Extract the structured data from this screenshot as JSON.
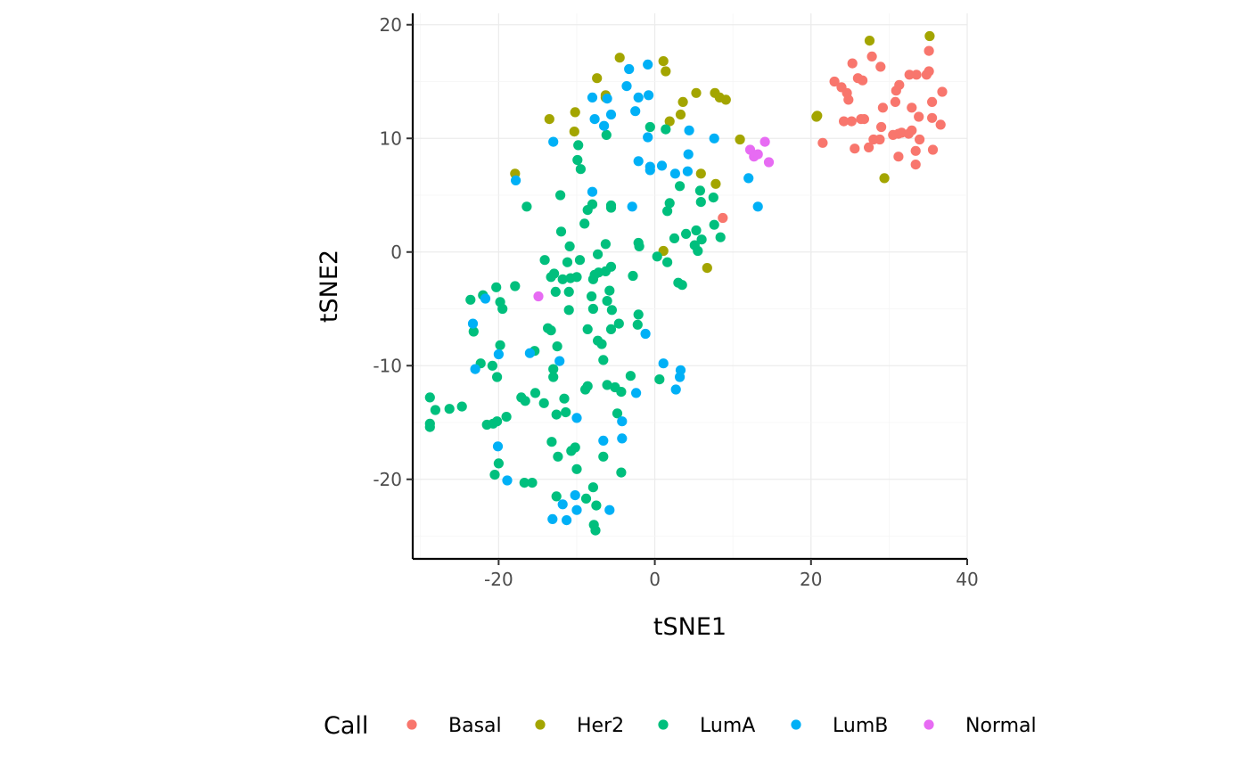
{
  "chart_data": {
    "type": "scatter",
    "xlabel": "tSNE1",
    "ylabel": "tSNE2",
    "xlim": [
      -31,
      40
    ],
    "ylim": [
      -27,
      21
    ],
    "x_ticks": [
      -20,
      0,
      20,
      40
    ],
    "y_ticks": [
      -20,
      -10,
      0,
      10,
      20
    ],
    "x_tick_labels": [
      "-20",
      "0",
      "20",
      "40"
    ],
    "y_tick_labels": [
      "-20",
      "-10",
      "0",
      "10",
      "20"
    ],
    "grid": true,
    "legend": {
      "title": "Call",
      "position": "bottom"
    },
    "series": [
      {
        "name": "Basal",
        "color": "#F8766D",
        "points": [
          [
            23.0,
            15.0
          ],
          [
            23.9,
            14.5
          ],
          [
            24.6,
            14.0
          ],
          [
            25.3,
            16.6
          ],
          [
            26.0,
            15.3
          ],
          [
            26.6,
            15.1
          ],
          [
            27.8,
            17.2
          ],
          [
            28.9,
            16.3
          ],
          [
            31.3,
            14.7
          ],
          [
            32.6,
            15.6
          ],
          [
            33.5,
            15.6
          ],
          [
            35.1,
            17.7
          ],
          [
            34.8,
            15.6
          ],
          [
            35.1,
            15.9
          ],
          [
            36.8,
            14.1
          ],
          [
            24.8,
            13.4
          ],
          [
            30.9,
            14.2
          ],
          [
            29.2,
            12.7
          ],
          [
            30.8,
            13.2
          ],
          [
            32.9,
            12.7
          ],
          [
            35.5,
            13.2
          ],
          [
            24.2,
            11.5
          ],
          [
            25.2,
            11.5
          ],
          [
            26.4,
            11.7
          ],
          [
            26.8,
            11.7
          ],
          [
            29.0,
            11.0
          ],
          [
            33.8,
            11.9
          ],
          [
            35.5,
            11.8
          ],
          [
            36.6,
            11.2
          ],
          [
            21.5,
            9.6
          ],
          [
            25.6,
            9.1
          ],
          [
            27.4,
            9.2
          ],
          [
            28.0,
            9.9
          ],
          [
            28.8,
            9.9
          ],
          [
            30.5,
            10.3
          ],
          [
            31.2,
            10.4
          ],
          [
            31.6,
            10.5
          ],
          [
            32.5,
            10.4
          ],
          [
            32.9,
            10.7
          ],
          [
            33.9,
            9.9
          ],
          [
            31.2,
            8.4
          ],
          [
            33.4,
            8.9
          ],
          [
            35.6,
            9.0
          ],
          [
            33.4,
            7.7
          ],
          [
            8.7,
            3.0
          ]
        ]
      },
      {
        "name": "Her2",
        "color": "#A3A500",
        "points": [
          [
            -4.5,
            17.1
          ],
          [
            1.1,
            16.8
          ],
          [
            1.4,
            15.9
          ],
          [
            -7.4,
            15.3
          ],
          [
            -6.3,
            13.8
          ],
          [
            -6.3,
            13.6
          ],
          [
            5.3,
            14.0
          ],
          [
            7.7,
            14.0
          ],
          [
            8.3,
            13.6
          ],
          [
            9.1,
            13.4
          ],
          [
            3.6,
            13.2
          ],
          [
            3.3,
            12.1
          ],
          [
            -10.2,
            12.3
          ],
          [
            -13.5,
            11.7
          ],
          [
            1.9,
            11.5
          ],
          [
            -10.3,
            10.6
          ],
          [
            20.7,
            11.9
          ],
          [
            20.8,
            12.0
          ],
          [
            10.9,
            9.9
          ],
          [
            27.5,
            18.6
          ],
          [
            35.2,
            19.0
          ],
          [
            -17.9,
            6.9
          ],
          [
            5.9,
            6.9
          ],
          [
            7.8,
            6.0
          ],
          [
            29.4,
            6.5
          ],
          [
            1.1,
            0.1
          ],
          [
            6.7,
            -1.4
          ]
        ]
      },
      {
        "name": "LumA",
        "color": "#00BF7D",
        "points": [
          [
            -0.6,
            11.0
          ],
          [
            1.4,
            10.8
          ],
          [
            -6.2,
            10.3
          ],
          [
            -9.8,
            9.4
          ],
          [
            -9.9,
            8.1
          ],
          [
            -9.5,
            7.3
          ],
          [
            3.2,
            5.8
          ],
          [
            5.8,
            5.4
          ],
          [
            7.5,
            4.8
          ],
          [
            -16.4,
            4.0
          ],
          [
            -12.1,
            5.0
          ],
          [
            -8.0,
            4.2
          ],
          [
            -8.6,
            3.7
          ],
          [
            -5.6,
            4.1
          ],
          [
            -5.6,
            3.9
          ],
          [
            1.6,
            3.6
          ],
          [
            1.9,
            4.3
          ],
          [
            5.9,
            4.4
          ],
          [
            -9.0,
            2.5
          ],
          [
            7.6,
            2.4
          ],
          [
            -12.0,
            1.8
          ],
          [
            2.5,
            1.2
          ],
          [
            4.0,
            1.6
          ],
          [
            5.3,
            1.9
          ],
          [
            6.0,
            1.1
          ],
          [
            8.4,
            1.3
          ],
          [
            -10.9,
            0.5
          ],
          [
            -6.3,
            0.7
          ],
          [
            -2.1,
            0.8
          ],
          [
            -2.0,
            0.5
          ],
          [
            5.1,
            0.6
          ],
          [
            5.5,
            0.1
          ],
          [
            -7.3,
            -0.2
          ],
          [
            0.3,
            -0.4
          ],
          [
            1.6,
            -0.9
          ],
          [
            -14.1,
            -0.7
          ],
          [
            -11.2,
            -0.9
          ],
          [
            -9.6,
            -0.7
          ],
          [
            -5.6,
            -1.3
          ],
          [
            -7.2,
            -1.8
          ],
          [
            -6.3,
            -1.7
          ],
          [
            -13.3,
            -2.2
          ],
          [
            -12.9,
            -1.9
          ],
          [
            -11.8,
            -2.4
          ],
          [
            -10.8,
            -2.3
          ],
          [
            -10.0,
            -2.2
          ],
          [
            -7.9,
            -2.4
          ],
          [
            -7.7,
            -2.0
          ],
          [
            -2.8,
            -2.1
          ],
          [
            3.0,
            -2.7
          ],
          [
            3.5,
            -2.9
          ],
          [
            -12.7,
            -3.5
          ],
          [
            -11.0,
            -3.5
          ],
          [
            -5.8,
            -3.4
          ],
          [
            -23.6,
            -4.2
          ],
          [
            -22.0,
            -3.8
          ],
          [
            -19.8,
            -4.4
          ],
          [
            -17.9,
            -3.0
          ],
          [
            -20.3,
            -3.1
          ],
          [
            -19.5,
            -5.0
          ],
          [
            -11.0,
            -5.1
          ],
          [
            -8.1,
            -3.9
          ],
          [
            -7.9,
            -5.0
          ],
          [
            -6.1,
            -4.3
          ],
          [
            -5.5,
            -5.1
          ],
          [
            -2.1,
            -5.5
          ],
          [
            -13.7,
            -6.7
          ],
          [
            -13.3,
            -6.9
          ],
          [
            -8.6,
            -6.8
          ],
          [
            -5.6,
            -6.8
          ],
          [
            -4.6,
            -6.3
          ],
          [
            -2.2,
            -6.4
          ],
          [
            -23.2,
            -7.0
          ],
          [
            -19.8,
            -8.2
          ],
          [
            -12.5,
            -8.3
          ],
          [
            -7.3,
            -7.8
          ],
          [
            -6.8,
            -8.1
          ],
          [
            -15.4,
            -8.7
          ],
          [
            -13.0,
            -10.3
          ],
          [
            -6.6,
            -9.5
          ],
          [
            -22.3,
            -9.8
          ],
          [
            -20.8,
            -10.0
          ],
          [
            -20.2,
            -11.0
          ],
          [
            -13.0,
            -11.0
          ],
          [
            -8.9,
            -12.1
          ],
          [
            -8.6,
            -11.8
          ],
          [
            -6.1,
            -11.7
          ],
          [
            -5.1,
            -11.9
          ],
          [
            -4.3,
            -12.3
          ],
          [
            -3.1,
            -10.9
          ],
          [
            0.6,
            -11.2
          ],
          [
            -28.8,
            -12.8
          ],
          [
            -28.1,
            -13.9
          ],
          [
            -26.3,
            -13.8
          ],
          [
            -24.7,
            -13.6
          ],
          [
            -17.1,
            -12.8
          ],
          [
            -16.6,
            -13.1
          ],
          [
            -15.3,
            -12.4
          ],
          [
            -14.2,
            -13.3
          ],
          [
            -11.6,
            -12.9
          ],
          [
            -12.6,
            -14.3
          ],
          [
            -11.4,
            -14.1
          ],
          [
            -4.8,
            -14.2
          ],
          [
            -28.8,
            -15.4
          ],
          [
            -28.8,
            -15.1
          ],
          [
            -21.5,
            -15.2
          ],
          [
            -20.7,
            -15.1
          ],
          [
            -20.2,
            -14.9
          ],
          [
            -19.0,
            -14.5
          ],
          [
            -13.2,
            -16.7
          ],
          [
            -10.7,
            -17.5
          ],
          [
            -10.2,
            -17.2
          ],
          [
            -12.4,
            -18.0
          ],
          [
            -6.6,
            -18.0
          ],
          [
            -20.0,
            -18.6
          ],
          [
            -20.5,
            -19.6
          ],
          [
            -10.0,
            -19.1
          ],
          [
            -4.3,
            -19.4
          ],
          [
            -16.7,
            -20.3
          ],
          [
            -15.7,
            -20.3
          ],
          [
            -7.9,
            -20.7
          ],
          [
            -12.6,
            -21.5
          ],
          [
            -8.8,
            -21.7
          ],
          [
            -7.5,
            -22.3
          ],
          [
            -7.8,
            -24.0
          ],
          [
            -7.6,
            -24.5
          ]
        ]
      },
      {
        "name": "LumB",
        "color": "#00B0F6",
        "points": [
          [
            -0.9,
            16.5
          ],
          [
            -3.3,
            16.1
          ],
          [
            -3.6,
            14.6
          ],
          [
            -8.0,
            13.6
          ],
          [
            -6.1,
            13.5
          ],
          [
            -0.8,
            13.8
          ],
          [
            -2.1,
            13.6
          ],
          [
            -2.5,
            12.4
          ],
          [
            -5.6,
            12.1
          ],
          [
            -7.7,
            11.7
          ],
          [
            -6.5,
            11.1
          ],
          [
            -0.9,
            10.1
          ],
          [
            4.4,
            10.7
          ],
          [
            7.6,
            10.0
          ],
          [
            -13.0,
            9.7
          ],
          [
            -2.1,
            8.0
          ],
          [
            -0.6,
            7.5
          ],
          [
            -0.6,
            7.2
          ],
          [
            0.9,
            7.6
          ],
          [
            2.6,
            6.9
          ],
          [
            4.2,
            7.1
          ],
          [
            4.3,
            8.6
          ],
          [
            -17.8,
            6.3
          ],
          [
            -8.0,
            5.3
          ],
          [
            12.0,
            6.5
          ],
          [
            -2.9,
            4.0
          ],
          [
            13.2,
            4.0
          ],
          [
            -21.7,
            -4.1
          ],
          [
            -23.3,
            -6.3
          ],
          [
            -16.0,
            -8.9
          ],
          [
            -12.2,
            -9.6
          ],
          [
            -1.2,
            -7.2
          ],
          [
            -20.0,
            -9.0
          ],
          [
            -23.0,
            -10.3
          ],
          [
            1.1,
            -9.8
          ],
          [
            3.3,
            -10.4
          ],
          [
            3.2,
            -11.0
          ],
          [
            2.7,
            -12.1
          ],
          [
            -2.4,
            -12.4
          ],
          [
            -10.0,
            -14.6
          ],
          [
            -4.2,
            -14.9
          ],
          [
            -6.6,
            -16.6
          ],
          [
            -4.2,
            -16.4
          ],
          [
            -20.1,
            -17.1
          ],
          [
            -18.9,
            -20.1
          ],
          [
            -10.2,
            -21.4
          ],
          [
            -11.8,
            -22.2
          ],
          [
            -10.0,
            -22.7
          ],
          [
            -5.8,
            -22.7
          ],
          [
            -13.1,
            -23.5
          ],
          [
            -11.3,
            -23.6
          ]
        ]
      },
      {
        "name": "Normal",
        "color": "#E76BF3",
        "points": [
          [
            14.1,
            9.7
          ],
          [
            12.2,
            9.0
          ],
          [
            12.7,
            8.4
          ],
          [
            13.2,
            8.6
          ],
          [
            14.6,
            7.9
          ],
          [
            -14.9,
            -3.9
          ]
        ]
      }
    ]
  }
}
